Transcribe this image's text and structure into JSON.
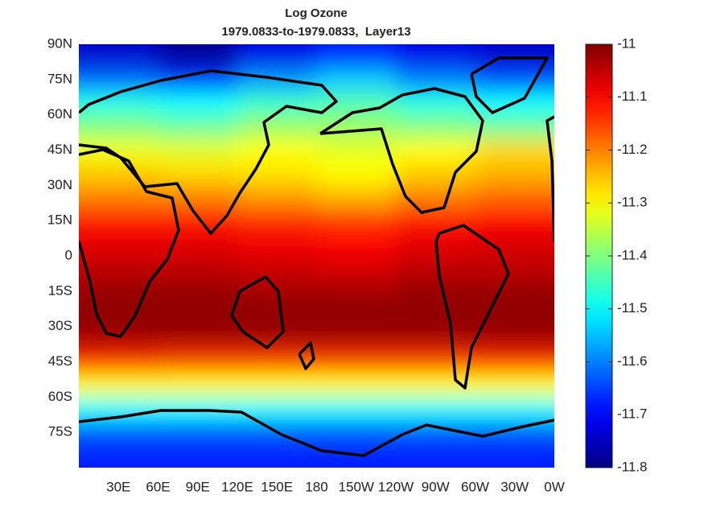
{
  "chart_data": {
    "type": "heatmap",
    "title": "Log Ozone",
    "subtitle": "1979.0833-to-1979.0833,  Layer13",
    "colormap": "jet",
    "x": [
      30,
      90,
      150,
      210,
      270,
      330
    ],
    "y": [
      85,
      75,
      65,
      55,
      45,
      35,
      25,
      15,
      5,
      -5,
      -15,
      -25,
      -35,
      -45,
      -55,
      -65,
      -75,
      -85
    ],
    "values": [
      [
        -11.74,
        -11.78,
        -11.72,
        -11.68,
        -11.72,
        -11.74
      ],
      [
        -11.62,
        -11.66,
        -11.58,
        -11.54,
        -11.6,
        -11.64
      ],
      [
        -11.48,
        -11.5,
        -11.46,
        -11.44,
        -11.48,
        -11.5
      ],
      [
        -11.4,
        -11.42,
        -11.38,
        -11.38,
        -11.4,
        -11.42
      ],
      [
        -11.31,
        -11.32,
        -11.3,
        -11.32,
        -11.3,
        -11.27
      ],
      [
        -11.26,
        -11.27,
        -11.28,
        -11.3,
        -11.26,
        -11.24
      ],
      [
        -11.2,
        -11.2,
        -11.22,
        -11.24,
        -11.2,
        -11.18
      ],
      [
        -11.12,
        -11.12,
        -11.13,
        -11.14,
        -11.12,
        -11.1
      ],
      [
        -11.08,
        -11.08,
        -11.09,
        -11.1,
        -11.08,
        -11.07
      ],
      [
        -11.05,
        -11.05,
        -11.06,
        -11.07,
        -11.05,
        -11.05
      ],
      [
        -11.02,
        -11.02,
        -11.03,
        -11.03,
        -11.02,
        -11.02
      ],
      [
        -11.01,
        -11.01,
        -11.01,
        -11.01,
        -11.01,
        -11.01
      ],
      [
        -11.03,
        -11.03,
        -11.03,
        -11.03,
        -11.03,
        -11.03
      ],
      [
        -11.14,
        -11.15,
        -11.15,
        -11.15,
        -11.15,
        -11.14
      ],
      [
        -11.3,
        -11.3,
        -11.3,
        -11.3,
        -11.3,
        -11.3
      ],
      [
        -11.5,
        -11.5,
        -11.5,
        -11.5,
        -11.5,
        -11.5
      ],
      [
        -11.63,
        -11.63,
        -11.63,
        -11.63,
        -11.63,
        -11.63
      ],
      [
        -11.68,
        -11.68,
        -11.68,
        -11.68,
        -11.68,
        -11.68
      ]
    ],
    "xlim": [
      0,
      360
    ],
    "ylim": [
      -90,
      90
    ],
    "xticks": [
      {
        "value": 30,
        "label": "30E"
      },
      {
        "value": 60,
        "label": "60E"
      },
      {
        "value": 90,
        "label": "90E"
      },
      {
        "value": 120,
        "label": "120E"
      },
      {
        "value": 150,
        "label": "150E"
      },
      180,
      {
        "value": 210,
        "label": "150W"
      },
      {
        "value": 240,
        "label": "120W"
      },
      {
        "value": 270,
        "label": "90W"
      },
      {
        "value": 300,
        "label": "60W"
      },
      {
        "value": 330,
        "label": "30W"
      },
      {
        "value": 360,
        "label": "0W"
      }
    ],
    "yticks": [
      {
        "value": 90,
        "label": "90N"
      },
      {
        "value": 75,
        "label": "75N"
      },
      {
        "value": 60,
        "label": "60N"
      },
      {
        "value": 45,
        "label": "45N"
      },
      {
        "value": 30,
        "label": "30N"
      },
      {
        "value": 15,
        "label": "15N"
      },
      0,
      {
        "value": -15,
        "label": "15S"
      },
      {
        "value": -30,
        "label": "30S"
      },
      {
        "value": -45,
        "label": "45S"
      },
      {
        "value": -60,
        "label": "60S"
      },
      {
        "value": -75,
        "label": "75S"
      }
    ],
    "clim": [
      -11.8,
      -11
    ],
    "cticks": [
      -11,
      -11.1,
      -11.2,
      -11.3,
      -11.4,
      -11.5,
      -11.6,
      -11.7,
      -11.8
    ]
  }
}
